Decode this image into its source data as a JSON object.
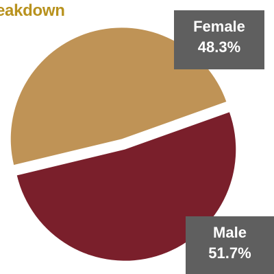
{
  "title": "eakdown",
  "colors": {
    "female": "#bf9356",
    "male": "#7a1f2b",
    "label_bg": "#5f5f5f",
    "title": "#b8921e"
  },
  "chart_data": {
    "type": "pie",
    "categories": [
      "Female",
      "Male"
    ],
    "values": [
      48.3,
      51.7
    ],
    "labels": [
      {
        "category": "Female",
        "percent": "48.3%"
      },
      {
        "category": "Male",
        "percent": "51.7%"
      }
    ],
    "exploded": true
  }
}
